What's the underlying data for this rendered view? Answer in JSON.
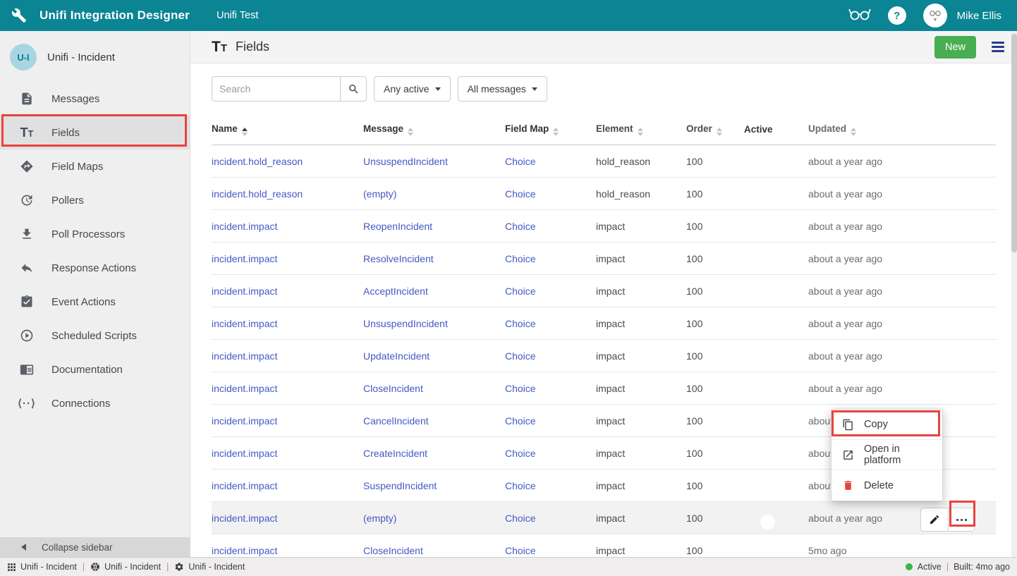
{
  "navbar": {
    "app_title": "Unifi Integration Designer",
    "environment": "Unifi Test",
    "user_name": "Mike Ellis"
  },
  "sidebar": {
    "integration_avatar": "U-I",
    "integration_name": "Unifi - Incident",
    "items": [
      {
        "icon": "messages-icon",
        "label": "Messages",
        "active": false
      },
      {
        "icon": "fields-icon",
        "label": "Fields",
        "active": true
      },
      {
        "icon": "field-maps-icon",
        "label": "Field Maps",
        "active": false
      },
      {
        "icon": "pollers-icon",
        "label": "Pollers",
        "active": false
      },
      {
        "icon": "poll-processors-icon",
        "label": "Poll Processors",
        "active": false
      },
      {
        "icon": "response-actions-icon",
        "label": "Response Actions",
        "active": false
      },
      {
        "icon": "event-actions-icon",
        "label": "Event Actions",
        "active": false
      },
      {
        "icon": "scheduled-scripts-icon",
        "label": "Scheduled Scripts",
        "active": false
      },
      {
        "icon": "documentation-icon",
        "label": "Documentation",
        "active": false
      },
      {
        "icon": "connections-icon",
        "label": "Connections",
        "active": false
      }
    ],
    "collapse_label": "Collapse sidebar"
  },
  "header": {
    "title": "Fields",
    "new_button_label": "New"
  },
  "toolbar": {
    "search_placeholder": "Search",
    "active_filter_label": "Any active",
    "message_filter_label": "All messages"
  },
  "table": {
    "columns": [
      "Name",
      "Message",
      "Field Map",
      "Element",
      "Order",
      "Active",
      "Updated"
    ],
    "sorted_column": "Name",
    "sort_direction": "asc",
    "rows": [
      {
        "name": "incident.hold_reason",
        "message": "UnsuspendIncident",
        "field_map": "Choice",
        "element": "hold_reason",
        "order": "100",
        "active": true,
        "updated": "about a year ago",
        "highlighted": false,
        "has_actions": false
      },
      {
        "name": "incident.hold_reason",
        "message": "(empty)",
        "field_map": "Choice",
        "element": "hold_reason",
        "order": "100",
        "active": true,
        "updated": "about a year ago",
        "highlighted": false,
        "has_actions": false
      },
      {
        "name": "incident.impact",
        "message": "ReopenIncident",
        "field_map": "Choice",
        "element": "impact",
        "order": "100",
        "active": true,
        "updated": "about a year ago",
        "highlighted": false,
        "has_actions": false
      },
      {
        "name": "incident.impact",
        "message": "ResolveIncident",
        "field_map": "Choice",
        "element": "impact",
        "order": "100",
        "active": true,
        "updated": "about a year ago",
        "highlighted": false,
        "has_actions": false
      },
      {
        "name": "incident.impact",
        "message": "AcceptIncident",
        "field_map": "Choice",
        "element": "impact",
        "order": "100",
        "active": true,
        "updated": "about a year ago",
        "highlighted": false,
        "has_actions": false
      },
      {
        "name": "incident.impact",
        "message": "UnsuspendIncident",
        "field_map": "Choice",
        "element": "impact",
        "order": "100",
        "active": true,
        "updated": "about a year ago",
        "highlighted": false,
        "has_actions": false
      },
      {
        "name": "incident.impact",
        "message": "UpdateIncident",
        "field_map": "Choice",
        "element": "impact",
        "order": "100",
        "active": true,
        "updated": "about a year ago",
        "highlighted": false,
        "has_actions": false
      },
      {
        "name": "incident.impact",
        "message": "CloseIncident",
        "field_map": "Choice",
        "element": "impact",
        "order": "100",
        "active": true,
        "updated": "about a year ago",
        "highlighted": false,
        "has_actions": false
      },
      {
        "name": "incident.impact",
        "message": "CancelIncident",
        "field_map": "Choice",
        "element": "impact",
        "order": "100",
        "active": true,
        "updated": "about a year ago",
        "highlighted": false,
        "has_actions": false
      },
      {
        "name": "incident.impact",
        "message": "CreateIncident",
        "field_map": "Choice",
        "element": "impact",
        "order": "100",
        "active": true,
        "updated": "about a year ago",
        "highlighted": false,
        "has_actions": false
      },
      {
        "name": "incident.impact",
        "message": "SuspendIncident",
        "field_map": "Choice",
        "element": "impact",
        "order": "100",
        "active": true,
        "updated": "about a year ago",
        "highlighted": false,
        "has_actions": false
      },
      {
        "name": "incident.impact",
        "message": "(empty)",
        "field_map": "Choice",
        "element": "impact",
        "order": "100",
        "active": true,
        "updated": "about a year ago",
        "highlighted": true,
        "has_actions": true
      },
      {
        "name": "incident.impact",
        "message": "CloseIncident",
        "field_map": "Choice",
        "element": "impact",
        "order": "100",
        "active": true,
        "updated": "5mo ago",
        "highlighted": false,
        "has_actions": false
      }
    ]
  },
  "context_menu": {
    "items": [
      {
        "icon": "copy-icon",
        "label": "Copy"
      },
      {
        "icon": "open-in-platform-icon",
        "label": "Open in platform"
      },
      {
        "icon": "delete-icon",
        "label": "Delete"
      }
    ]
  },
  "statusbar": {
    "left_items": [
      {
        "icon": "grid-icon",
        "label": "Unifi - Incident"
      },
      {
        "icon": "integration-icon",
        "label": "Unifi - Incident"
      },
      {
        "icon": "settings-icon",
        "label": "Unifi - Incident"
      }
    ],
    "status_label": "Active",
    "built_label": "Built: 4mo ago"
  },
  "colors": {
    "navbar_teal": "#0b8494",
    "link_blue": "#4459c4",
    "new_button_green": "#49ad52",
    "toggle_green": "#5cb86e",
    "status_green": "#3db349",
    "annotation_red": "#e8433f",
    "delete_red": "#e0443c",
    "hamburger_blue": "#2b3990"
  }
}
